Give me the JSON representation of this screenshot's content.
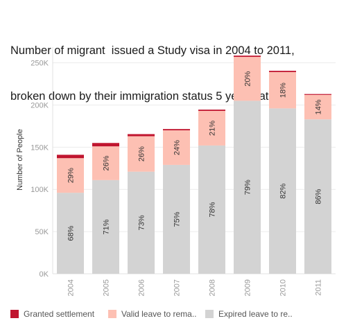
{
  "title_line1": "Number of migrant  issued a Study visa in 2004 to 2011,",
  "title_line2": "broken down by their immigration status 5 years later",
  "legend": [
    {
      "label": "Granted settlement",
      "color": "#c0152f"
    },
    {
      "label": "Valid leave to rema..",
      "color": "#fdc0b3"
    },
    {
      "label": "Expired leave to re..",
      "color": "#d3d3d3"
    }
  ],
  "chart_data": {
    "type": "bar",
    "stacked": true,
    "ylabel": "Number of People",
    "ylim": [
      0,
      260000
    ],
    "yticks": [
      0,
      50000,
      100000,
      150000,
      200000,
      250000
    ],
    "ytick_labels": [
      "0K",
      "50K",
      "100K",
      "150K",
      "200K",
      "250K"
    ],
    "categories": [
      "2004",
      "2005",
      "2006",
      "2007",
      "2008",
      "2009",
      "2010",
      "2011"
    ],
    "series": [
      {
        "name": "Expired leave to re..",
        "color": "#d3d3d3",
        "values": [
          96000,
          111000,
          121000,
          129000,
          152000,
          205000,
          196000,
          183000
        ],
        "labels": [
          "68%",
          "71%",
          "73%",
          "75%",
          "78%",
          "79%",
          "82%",
          "86%"
        ]
      },
      {
        "name": "Valid leave to rema..",
        "color": "#fdc0b3",
        "values": [
          41000,
          40000,
          42000,
          41000,
          41000,
          52000,
          43000,
          29000
        ],
        "labels": [
          "29%",
          "26%",
          "26%",
          "24%",
          "21%",
          "20%",
          "18%",
          "14%"
        ]
      },
      {
        "name": "Granted settlement",
        "color": "#c0152f",
        "values": [
          4000,
          4000,
          2500,
          1500,
          1500,
          1500,
          1500,
          1000
        ],
        "labels": [
          "",
          "",
          "",
          "",
          "",
          "",
          "",
          ""
        ]
      }
    ],
    "grid": true
  }
}
